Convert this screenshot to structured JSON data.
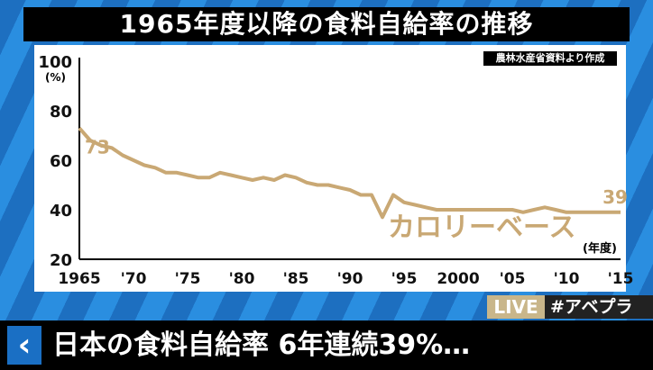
{
  "title": "1965年度以降の食料自給率の推移",
  "source": "農林水産省資料より作成",
  "live_label": "LIVE",
  "hashtag": "#アベプラ",
  "headline": "日本の食料自給率 6年連続39%…",
  "back_icon": "chevron-left-icon",
  "colors": {
    "line": "#c9a874",
    "axis": "#000000",
    "accent": "#1a6fc4"
  },
  "chart_data": {
    "type": "line",
    "title": "1965年度以降の食料自給率の推移",
    "xlabel": "(年度)",
    "ylabel": "(%)",
    "ylim": [
      20,
      100
    ],
    "xlim": [
      1965,
      2015
    ],
    "yticks": [
      20,
      40,
      60,
      80,
      100
    ],
    "xticks": [
      {
        "value": 1965,
        "label": "1965"
      },
      {
        "value": 1970,
        "label": "'70"
      },
      {
        "value": 1975,
        "label": "'75"
      },
      {
        "value": 1980,
        "label": "'80"
      },
      {
        "value": 1985,
        "label": "'85"
      },
      {
        "value": 1990,
        "label": "'90"
      },
      {
        "value": 1995,
        "label": "'95"
      },
      {
        "value": 2000,
        "label": "2000"
      },
      {
        "value": 2005,
        "label": "'05"
      },
      {
        "value": 2010,
        "label": "'10"
      },
      {
        "value": 2015,
        "label": "'15"
      }
    ],
    "series": [
      {
        "name": "カロリーベース",
        "x": [
          1965,
          1966,
          1967,
          1968,
          1969,
          1970,
          1971,
          1972,
          1973,
          1974,
          1975,
          1976,
          1977,
          1978,
          1979,
          1980,
          1981,
          1982,
          1983,
          1984,
          1985,
          1986,
          1987,
          1988,
          1989,
          1990,
          1991,
          1992,
          1993,
          1994,
          1995,
          1996,
          1997,
          1998,
          1999,
          2000,
          2001,
          2002,
          2003,
          2004,
          2005,
          2006,
          2007,
          2008,
          2009,
          2010,
          2011,
          2012,
          2013,
          2014,
          2015
        ],
        "values": [
          73,
          68,
          66,
          65,
          62,
          60,
          58,
          57,
          55,
          55,
          54,
          53,
          53,
          55,
          54,
          53,
          52,
          53,
          52,
          54,
          53,
          51,
          50,
          50,
          49,
          48,
          46,
          46,
          37,
          46,
          43,
          42,
          41,
          40,
          40,
          40,
          40,
          40,
          40,
          40,
          40,
          39,
          40,
          41,
          40,
          39,
          39,
          39,
          39,
          39,
          39
        ]
      }
    ],
    "annotations": [
      {
        "text": "73",
        "x": 1965,
        "y": 73
      },
      {
        "text": "39",
        "x": 2015,
        "y": 39
      }
    ],
    "series_label": "カロリーベース"
  }
}
